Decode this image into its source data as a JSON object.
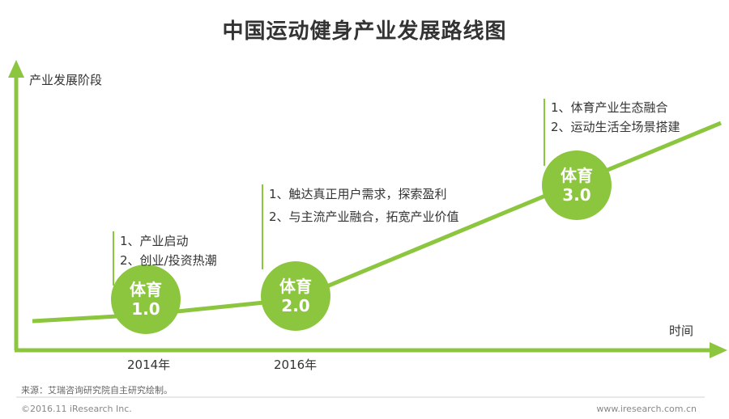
{
  "title": "中国运动健身产业发展路线图",
  "axes": {
    "y_label": "产业发展阶段",
    "x_label": "时间",
    "x_ticks": [
      "2014年",
      "2016年"
    ]
  },
  "stages": [
    {
      "line1": "体育",
      "line2": "1.0",
      "notes": [
        "1、产业启动",
        "2、创业/投资热潮"
      ]
    },
    {
      "line1": "体育",
      "line2": "2.0",
      "notes": [
        "1、触达真正用户需求，探索盈利",
        "2、与主流产业融合，拓宽产业价值"
      ]
    },
    {
      "line1": "体育",
      "line2": "3.0",
      "notes": [
        "1、体育产业生态融合",
        "2、运动生活全场景搭建"
      ]
    }
  ],
  "source": "来源：艾瑞咨询研究院自主研究绘制。",
  "footer": {
    "copyright": "©2016.11 iResearch Inc.",
    "website": "www.iresearch.com.cn"
  },
  "colors": {
    "accent": "#8cc63f",
    "text": "#333333"
  }
}
